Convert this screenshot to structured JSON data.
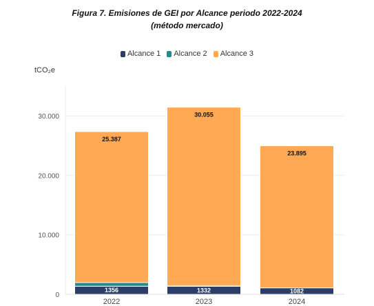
{
  "chart_data": {
    "type": "bar",
    "stacked": true,
    "title": "Figura 7. Emisiones de GEI por Alcance periodo 2022-2024",
    "subtitle": "(método mercado)",
    "ylabel": "tCO₂e",
    "categories": [
      "2022",
      "2023",
      "2024"
    ],
    "ylim": [
      0,
      35000
    ],
    "yticks": [
      0,
      10000,
      20000,
      30000
    ],
    "ytick_labels": [
      "0",
      "10.000",
      "20.000",
      "30.000"
    ],
    "legend_position": "top-center",
    "grid": true,
    "series": [
      {
        "name": "Alcance 1",
        "color": "#2d3e66",
        "values": [
          1356,
          1332,
          1082
        ],
        "labels": [
          "1356",
          "1332",
          "1082"
        ]
      },
      {
        "name": "Alcance 2",
        "color": "#2a8a8a",
        "values": [
          617,
          66,
          0
        ],
        "labels": [
          "617",
          "66",
          "0"
        ]
      },
      {
        "name": "Alcance 3",
        "color": "#ffa955",
        "values": [
          25387,
          30055,
          23895
        ],
        "labels": [
          "25.387",
          "30.055",
          "23.895"
        ]
      }
    ]
  }
}
